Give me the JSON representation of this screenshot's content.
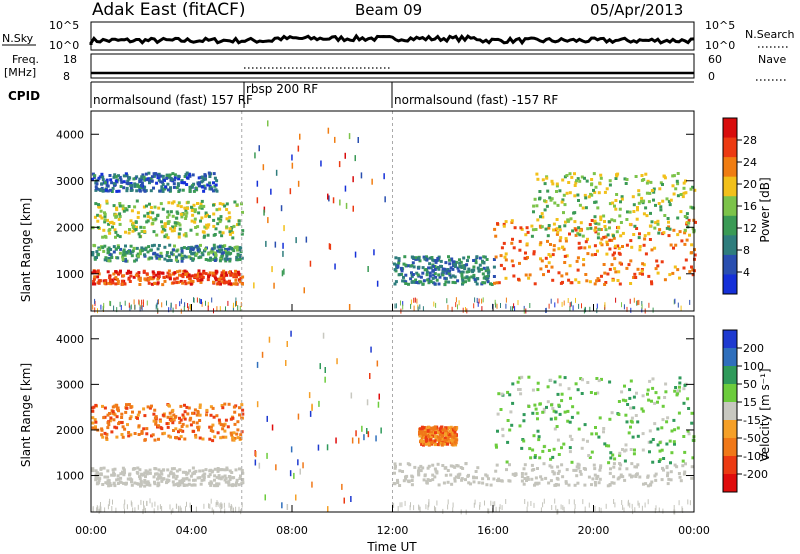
{
  "header": {
    "station": "Adak East (fitACF)",
    "beam": "Beam 09",
    "date": "05/Apr/2013"
  },
  "summary_panels": {
    "nsky": {
      "label": "N.Sky",
      "ticks": [
        "10^5",
        "10^0"
      ]
    },
    "nsearch": {
      "label": "N.Search",
      "ticks": [
        "10^5",
        "10^0"
      ]
    },
    "freq": {
      "label_line1": "Freq.",
      "label_line2": "[MHz]",
      "ticks": [
        "18",
        "8"
      ]
    },
    "nave": {
      "label": "Nave",
      "ticks": [
        "60",
        "0"
      ]
    },
    "cpid": {
      "label": "CPID",
      "segments": [
        {
          "name": "normalsound (fast) 157 RF",
          "start": "00:00",
          "end": "06:00"
        },
        {
          "name": "rbsp 200 RF",
          "start": "06:00",
          "end": "12:00"
        },
        {
          "name": "normalsound (fast) -157 RF",
          "start": "12:00",
          "end": "24:00"
        }
      ]
    }
  },
  "chart_data": [
    {
      "type": "heatmap",
      "panel": "power",
      "ylabel": "Slant Range [km]",
      "ylim": [
        200,
        4500
      ],
      "yticks": [
        1000,
        2000,
        3000,
        4000
      ],
      "xlabel": "Time UT",
      "xlim": [
        "00:00",
        "24:00"
      ],
      "xticks": [
        "00:00",
        "04:00",
        "08:00",
        "12:00",
        "16:00",
        "20:00",
        "00:00"
      ],
      "colorbar": {
        "label": "Power [dB]",
        "ticks": [
          "4",
          "8",
          "12",
          "16",
          "20",
          "24",
          "28"
        ],
        "colors": [
          "#1530d8",
          "#2a4fb0",
          "#2f7d7d",
          "#3a9a55",
          "#7cc34a",
          "#f2c01a",
          "#f07d12",
          "#ec3a12",
          "#d80c0c"
        ]
      },
      "features": [
        {
          "start": "00:00",
          "end": "06:00",
          "range_km": [
            800,
            1100
          ],
          "power_db": 28
        },
        {
          "start": "00:00",
          "end": "06:00",
          "range_km": [
            1300,
            1650
          ],
          "power_db": 10
        },
        {
          "start": "00:00",
          "end": "06:00",
          "range_km": [
            1800,
            2600
          ],
          "power_db": 16
        },
        {
          "start": "00:00",
          "end": "05:00",
          "range_km": [
            2800,
            3200
          ],
          "power_db": 6
        },
        {
          "start": "12:00",
          "end": "16:00",
          "range_km": [
            800,
            1400
          ],
          "power_db": 8
        },
        {
          "start": "16:00",
          "end": "24:00",
          "range_km": [
            800,
            2200
          ],
          "power_db": 24
        },
        {
          "start": "17:30",
          "end": "24:00",
          "range_km": [
            1800,
            3200
          ],
          "power_db": 16
        }
      ]
    },
    {
      "type": "heatmap",
      "panel": "velocity",
      "ylabel": "Slant Range [km]",
      "ylim": [
        200,
        4500
      ],
      "yticks": [
        1000,
        2000,
        3000,
        4000
      ],
      "xlabel": "Time UT",
      "xlim": [
        "00:00",
        "24:00"
      ],
      "xticks": [
        "00:00",
        "04:00",
        "08:00",
        "12:00",
        "16:00",
        "20:00",
        "00:00"
      ],
      "colorbar": {
        "label": "Velocity [m s⁻¹]",
        "ticks": [
          "200",
          "100",
          "50",
          "15",
          "-15",
          "-50",
          "-100",
          "-200"
        ],
        "colors": [
          "#1e3ad0",
          "#2f6fbc",
          "#2f9a5a",
          "#6ccc3c",
          "#c8c8c0",
          "#f5a028",
          "#f07818",
          "#ec3a12",
          "#e00c0c"
        ]
      },
      "features": [
        {
          "start": "00:00",
          "end": "06:00",
          "range_km": [
            800,
            1200
          ],
          "velocity_ms": 0,
          "state": "ground scatter"
        },
        {
          "start": "00:00",
          "end": "06:00",
          "range_km": [
            1800,
            2600
          ],
          "velocity_ms": -40
        },
        {
          "start": "12:00",
          "end": "24:00",
          "range_km": [
            800,
            1300
          ],
          "velocity_ms": 0,
          "state": "ground scatter"
        },
        {
          "start": "13:00",
          "end": "14:30",
          "range_km": [
            1700,
            2100
          ],
          "velocity_ms": -60
        },
        {
          "start": "16:00",
          "end": "24:00",
          "range_km": [
            1300,
            3200
          ],
          "velocity_ms": 30
        }
      ]
    }
  ]
}
